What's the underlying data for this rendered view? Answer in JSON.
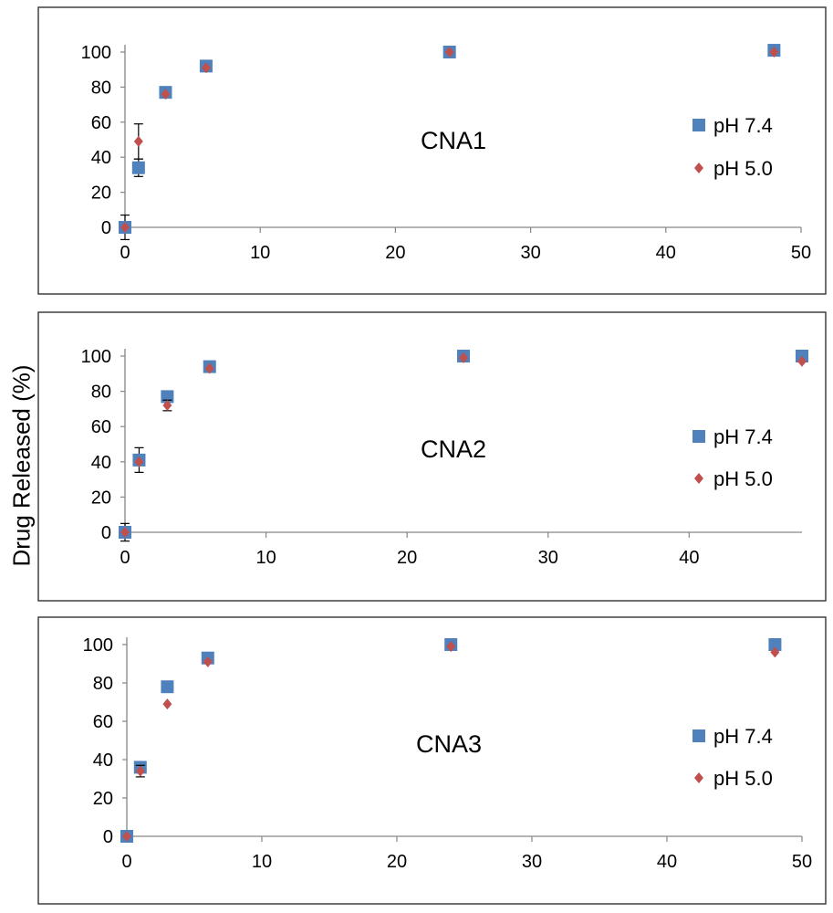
{
  "ylabel": "Drug Released (%)",
  "colors": {
    "ph74": "#4f81bd",
    "ph50": "#c0504d",
    "axis": "#868686",
    "frame": "#404040"
  },
  "chart_data": [
    {
      "type": "scatter",
      "title": "CNA1",
      "xlabel": "",
      "ylabel": "Drug Released (%)",
      "xlim": [
        0,
        50
      ],
      "ylim": [
        0,
        100
      ],
      "xticks": [
        0,
        10,
        20,
        30,
        40,
        50
      ],
      "yticks": [
        0,
        20,
        40,
        60,
        80,
        100
      ],
      "legend_position": "right",
      "series": [
        {
          "name": "pH 7.4",
          "marker": "square",
          "x": [
            0,
            1,
            3,
            6,
            24,
            48
          ],
          "y": [
            0,
            34,
            77,
            92,
            100,
            101
          ],
          "err": [
            7,
            5,
            2,
            1,
            0,
            0
          ]
        },
        {
          "name": "pH 5.0",
          "marker": "diamond",
          "x": [
            0,
            1,
            3,
            6,
            24,
            48
          ],
          "y": [
            0,
            49,
            76,
            91,
            100,
            100
          ],
          "err": [
            0,
            10,
            0,
            0,
            0,
            0
          ]
        }
      ]
    },
    {
      "type": "scatter",
      "title": "CNA2",
      "xlabel": "",
      "ylabel": "Drug Released (%)",
      "xlim": [
        0,
        48
      ],
      "ylim": [
        0,
        100
      ],
      "xticks": [
        0,
        10,
        20,
        30,
        40
      ],
      "yticks": [
        0,
        20,
        40,
        60,
        80,
        100
      ],
      "legend_position": "right",
      "series": [
        {
          "name": "pH 7.4",
          "marker": "square",
          "x": [
            0,
            1,
            3,
            6,
            24,
            48
          ],
          "y": [
            0,
            41,
            77,
            94,
            100,
            100
          ],
          "err": [
            5,
            7,
            2,
            1,
            0,
            0
          ]
        },
        {
          "name": "pH 5.0",
          "marker": "diamond",
          "x": [
            0,
            1,
            3,
            6,
            24,
            48
          ],
          "y": [
            0,
            40,
            72,
            93,
            99,
            97
          ],
          "err": [
            0,
            0,
            3,
            0,
            0,
            0
          ]
        }
      ]
    },
    {
      "type": "scatter",
      "title": "CNA3",
      "xlabel": "",
      "ylabel": "Drug Released (%)",
      "xlim": [
        0,
        50
      ],
      "ylim": [
        0,
        100
      ],
      "xticks": [
        0,
        10,
        20,
        30,
        40,
        50
      ],
      "yticks": [
        0,
        20,
        40,
        60,
        80,
        100
      ],
      "legend_position": "right",
      "series": [
        {
          "name": "pH 7.4",
          "marker": "square",
          "x": [
            0,
            1,
            3,
            6,
            24,
            48
          ],
          "y": [
            0,
            36,
            78,
            93,
            100,
            100
          ],
          "err": [
            0,
            1,
            1,
            1,
            0,
            0
          ]
        },
        {
          "name": "pH 5.0",
          "marker": "diamond",
          "x": [
            0,
            1,
            3,
            6,
            24,
            48
          ],
          "y": [
            0,
            34,
            69,
            91,
            99,
            96
          ],
          "err": [
            0,
            3,
            0,
            0,
            0,
            0
          ]
        }
      ]
    }
  ]
}
